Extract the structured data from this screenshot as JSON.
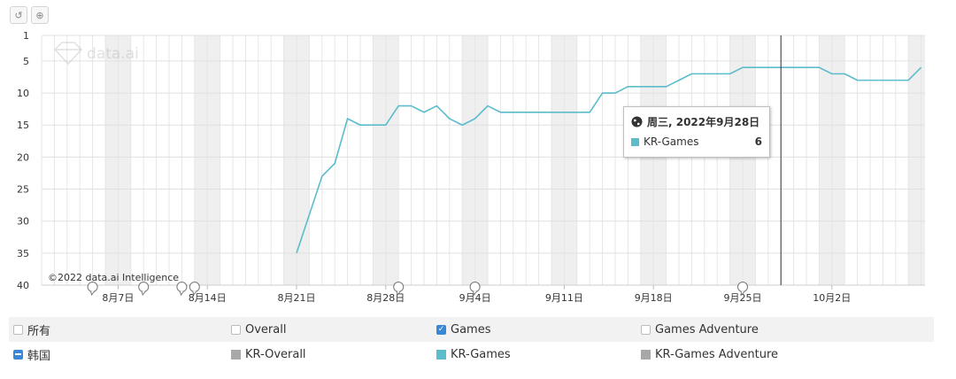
{
  "toolbar": {
    "reset_icon": "reset-icon",
    "zoom_icon": "zoom-icon"
  },
  "watermark": "data.ai",
  "copyright": "©2022 data.ai Intelligence",
  "tooltip": {
    "date": "周三, 2022年9月28日",
    "series": "KR-Games",
    "value": "6",
    "color": "#5bbccb"
  },
  "legend": {
    "row1": [
      {
        "label": "所有",
        "checked": false
      },
      {
        "label": "Overall",
        "checked": false
      },
      {
        "label": "Games",
        "checked": true
      },
      {
        "label": "Games Adventure",
        "checked": false
      }
    ],
    "row2": [
      {
        "label": "韩国",
        "state": "minus"
      },
      {
        "label": "KR-Overall",
        "color": "#a8a8a8"
      },
      {
        "label": "KR-Games",
        "color": "#5bbccb"
      },
      {
        "label": "KR-Games Adventure",
        "color": "#a8a8a8"
      }
    ]
  },
  "chart_data": {
    "type": "line",
    "start_date": "2022-08-01",
    "x_tick_labels": [
      "8月7日",
      "8月14日",
      "8月21日",
      "8月28日",
      "9月4日",
      "9月11日",
      "9月18日",
      "9月25日",
      "10月2日"
    ],
    "y_tick_labels": [
      "1",
      "5",
      "10",
      "15",
      "20",
      "25",
      "30",
      "35",
      "40"
    ],
    "y_ticks": [
      1,
      5,
      10,
      15,
      20,
      25,
      30,
      35,
      40
    ],
    "ylim": [
      1,
      40
    ],
    "y_reversed": true,
    "grid": true,
    "series": [
      {
        "name": "KR-Games",
        "color": "#5bbccb",
        "points": [
          [
            "2022-08-21",
            35
          ],
          [
            "2022-08-22",
            29
          ],
          [
            "2022-08-23",
            23
          ],
          [
            "2022-08-24",
            21
          ],
          [
            "2022-08-25",
            14
          ],
          [
            "2022-08-26",
            15
          ],
          [
            "2022-08-27",
            15
          ],
          [
            "2022-08-28",
            15
          ],
          [
            "2022-08-29",
            12
          ],
          [
            "2022-08-30",
            12
          ],
          [
            "2022-08-31",
            13
          ],
          [
            "2022-09-01",
            12
          ],
          [
            "2022-09-02",
            14
          ],
          [
            "2022-09-03",
            15
          ],
          [
            "2022-09-04",
            14
          ],
          [
            "2022-09-05",
            12
          ],
          [
            "2022-09-06",
            13
          ],
          [
            "2022-09-07",
            13
          ],
          [
            "2022-09-08",
            13
          ],
          [
            "2022-09-09",
            13
          ],
          [
            "2022-09-10",
            13
          ],
          [
            "2022-09-11",
            13
          ],
          [
            "2022-09-12",
            13
          ],
          [
            "2022-09-13",
            13
          ],
          [
            "2022-09-14",
            10
          ],
          [
            "2022-09-15",
            10
          ],
          [
            "2022-09-16",
            9
          ],
          [
            "2022-09-17",
            9
          ],
          [
            "2022-09-18",
            9
          ],
          [
            "2022-09-19",
            9
          ],
          [
            "2022-09-20",
            8
          ],
          [
            "2022-09-21",
            7
          ],
          [
            "2022-09-22",
            7
          ],
          [
            "2022-09-23",
            7
          ],
          [
            "2022-09-24",
            7
          ],
          [
            "2022-09-25",
            6
          ],
          [
            "2022-09-26",
            6
          ],
          [
            "2022-09-27",
            6
          ],
          [
            "2022-09-28",
            6
          ],
          [
            "2022-09-29",
            6
          ],
          [
            "2022-09-30",
            6
          ],
          [
            "2022-10-01",
            6
          ],
          [
            "2022-10-02",
            7
          ],
          [
            "2022-10-03",
            7
          ],
          [
            "2022-10-04",
            8
          ],
          [
            "2022-10-05",
            8
          ],
          [
            "2022-10-06",
            8
          ],
          [
            "2022-10-07",
            8
          ],
          [
            "2022-10-08",
            8
          ],
          [
            "2022-10-09",
            6
          ]
        ]
      }
    ],
    "crosshair_date": "2022-09-28",
    "shaded_date_ranges": [
      [
        "2022-08-06",
        "2022-08-07"
      ],
      [
        "2022-08-13",
        "2022-08-14"
      ],
      [
        "2022-08-20",
        "2022-08-21"
      ],
      [
        "2022-08-27",
        "2022-08-28"
      ],
      [
        "2022-09-03",
        "2022-09-04"
      ],
      [
        "2022-09-10",
        "2022-09-11"
      ],
      [
        "2022-09-17",
        "2022-09-18"
      ],
      [
        "2022-09-24",
        "2022-09-25"
      ],
      [
        "2022-10-01",
        "2022-10-02"
      ],
      [
        "2022-10-08",
        "2022-10-09"
      ]
    ],
    "event_marker_dates": [
      "2022-08-05",
      "2022-08-09",
      "2022-08-12",
      "2022-08-13",
      "2022-08-29",
      "2022-09-04",
      "2022-09-25"
    ]
  }
}
